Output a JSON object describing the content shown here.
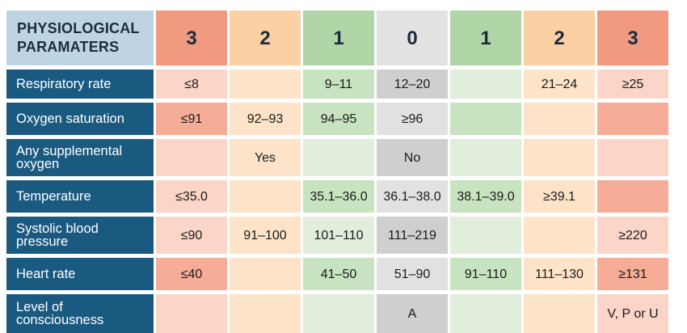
{
  "header": {
    "label": "PHYSIOLOGICAL PARAMATERS",
    "scores": [
      "3",
      "2",
      "1",
      "0",
      "1",
      "2",
      "3"
    ]
  },
  "rows": [
    {
      "label": "Respiratory rate",
      "cells": [
        "≤8",
        "",
        "9–11",
        "12–20",
        "",
        "21–24",
        "≥25"
      ]
    },
    {
      "label": "Oxygen saturation",
      "cells": [
        "≤91",
        "92–93",
        "94–95",
        "≥96",
        "",
        "",
        ""
      ]
    },
    {
      "label": "Any supplemental oxygen",
      "cells": [
        "",
        "Yes",
        "",
        "No",
        "",
        "",
        ""
      ]
    },
    {
      "label": "Temperature",
      "cells": [
        "≤35.0",
        "",
        "35.1–36.0",
        "36.1–38.0",
        "38.1–39.0",
        "≥39.1",
        ""
      ]
    },
    {
      "label": "Systolic blood pressure",
      "cells": [
        "≤90",
        "91–100",
        "101–110",
        "111–219",
        "",
        "",
        "≥220"
      ]
    },
    {
      "label": "Heart rate",
      "cells": [
        "≤40",
        "",
        "41–50",
        "51–90",
        "91–110",
        "111–130",
        "≥131"
      ]
    },
    {
      "label": "Level of consciousness",
      "cells": [
        "",
        "",
        "",
        "A",
        "",
        "",
        "V, P or U"
      ]
    }
  ],
  "colors": {
    "row_header": "#1a5a80",
    "corner": "#bfd4e3",
    "score_3": "#f19a80",
    "score_2": "#fbd0a3",
    "score_1": "#b0d6a7",
    "score_0": "#e2e2e2"
  }
}
